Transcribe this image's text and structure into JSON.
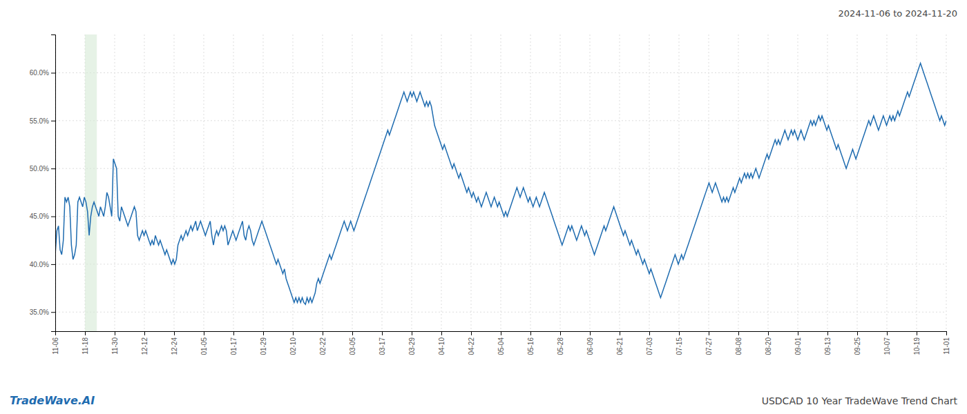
{
  "chart_data": {
    "type": "line",
    "title": "2024-11-06 to 2024-11-20",
    "annotations": [
      "TradeWave.AI",
      "USDCAD 10 Year TradeWave Trend Chart"
    ],
    "color": "#1f6cb0",
    "grid": true,
    "xlim": [
      0,
      552
    ],
    "xticks": [
      {
        "value": 0,
        "label": "11-06"
      },
      {
        "value": 18.4,
        "label": "11-18"
      },
      {
        "value": 36.8,
        "label": "11-30"
      },
      {
        "value": 55.2,
        "label": "12-12"
      },
      {
        "value": 73.6,
        "label": "12-24"
      },
      {
        "value": 92,
        "label": "01-05"
      },
      {
        "value": 110.4,
        "label": "01-17"
      },
      {
        "value": 128.8,
        "label": "01-29"
      },
      {
        "value": 147.2,
        "label": "02-10"
      },
      {
        "value": 165.6,
        "label": "02-22"
      },
      {
        "value": 184,
        "label": "03-05"
      },
      {
        "value": 202.4,
        "label": "03-17"
      },
      {
        "value": 220.8,
        "label": "03-29"
      },
      {
        "value": 239.2,
        "label": "04-10"
      },
      {
        "value": 257.6,
        "label": "04-22"
      },
      {
        "value": 276,
        "label": "05-04"
      },
      {
        "value": 294.4,
        "label": "05-16"
      },
      {
        "value": 312.8,
        "label": "05-28"
      },
      {
        "value": 331.2,
        "label": "06-09"
      },
      {
        "value": 349.6,
        "label": "06-21"
      },
      {
        "value": 368,
        "label": "07-03"
      },
      {
        "value": 386.4,
        "label": "07-15"
      },
      {
        "value": 404.8,
        "label": "07-27"
      },
      {
        "value": 423.2,
        "label": "08-08"
      },
      {
        "value": 441.6,
        "label": "08-20"
      },
      {
        "value": 460,
        "label": "09-01"
      },
      {
        "value": 478.4,
        "label": "09-13"
      },
      {
        "value": 496.8,
        "label": "09-25"
      },
      {
        "value": 515.2,
        "label": "10-07"
      },
      {
        "value": 533.6,
        "label": "10-19"
      },
      {
        "value": 552,
        "label": "11-01"
      }
    ],
    "ylim": [
      33.0,
      64.0
    ],
    "yticks": [
      {
        "value": 35.0,
        "label": "35.0%"
      },
      {
        "value": 40.0,
        "label": "40.0%"
      },
      {
        "value": 45.0,
        "label": "45.0%"
      },
      {
        "value": 50.0,
        "label": "50.0%"
      },
      {
        "value": 55.0,
        "label": "55.0%"
      },
      {
        "value": 60.0,
        "label": "60.0%"
      }
    ],
    "shade_range": [
      18.4,
      25.76
    ],
    "shade_color": "#d6ead6",
    "values": [
      41.0,
      43.5,
      44.0,
      41.5,
      41.0,
      42.5,
      47.0,
      46.5,
      47.0,
      46.0,
      42.0,
      40.5,
      41.0,
      42.0,
      46.5,
      47.0,
      46.5,
      46.0,
      47.0,
      46.5,
      45.5,
      43.0,
      45.0,
      46.0,
      46.5,
      46.0,
      45.5,
      45.0,
      46.0,
      45.5,
      45.0,
      46.0,
      47.5,
      47.0,
      46.0,
      45.0,
      51.0,
      50.5,
      50.0,
      45.0,
      44.5,
      46.0,
      45.5,
      45.0,
      44.5,
      44.0,
      44.5,
      45.0,
      45.5,
      46.0,
      45.5,
      43.0,
      42.5,
      43.0,
      43.5,
      43.0,
      43.5,
      43.0,
      42.5,
      42.0,
      42.5,
      42.0,
      43.0,
      42.5,
      42.0,
      42.5,
      42.0,
      41.5,
      41.0,
      41.5,
      41.0,
      40.5,
      40.0,
      40.5,
      40.0,
      40.5,
      42.0,
      42.5,
      43.0,
      42.5,
      43.0,
      43.5,
      43.0,
      43.5,
      44.0,
      43.5,
      44.0,
      44.5,
      43.5,
      44.0,
      44.5,
      44.0,
      43.5,
      43.0,
      43.5,
      44.0,
      44.5,
      43.0,
      42.0,
      43.0,
      43.5,
      43.0,
      43.5,
      44.0,
      43.5,
      44.0,
      43.5,
      42.0,
      42.5,
      43.0,
      43.5,
      43.0,
      42.5,
      43.0,
      43.5,
      44.0,
      44.5,
      43.0,
      42.5,
      43.5,
      44.0,
      43.5,
      42.5,
      42.0,
      42.5,
      43.0,
      43.5,
      44.0,
      44.5,
      44.0,
      43.5,
      43.0,
      42.5,
      42.0,
      41.5,
      41.0,
      40.5,
      40.0,
      40.5,
      40.0,
      39.5,
      39.0,
      39.5,
      38.5,
      38.0,
      37.5,
      37.0,
      36.5,
      36.0,
      36.5,
      36.0,
      36.5,
      36.0,
      36.5,
      36.0,
      35.8,
      36.5,
      36.0,
      36.5,
      36.0,
      36.5,
      37.0,
      38.0,
      38.5,
      38.0,
      38.5,
      39.0,
      39.5,
      40.0,
      40.5,
      41.0,
      40.5,
      41.0,
      41.5,
      42.0,
      42.5,
      43.0,
      43.5,
      44.0,
      44.5,
      44.0,
      43.5,
      44.0,
      44.5,
      44.0,
      43.5,
      44.0,
      44.5,
      45.0,
      45.5,
      46.0,
      46.5,
      47.0,
      47.5,
      48.0,
      48.5,
      49.0,
      49.5,
      50.0,
      50.5,
      51.0,
      51.5,
      52.0,
      52.5,
      53.0,
      53.5,
      54.0,
      53.5,
      54.0,
      54.5,
      55.0,
      55.5,
      56.0,
      56.5,
      57.0,
      57.5,
      58.0,
      57.5,
      57.0,
      57.5,
      58.0,
      57.5,
      58.0,
      57.5,
      57.0,
      57.5,
      58.0,
      57.5,
      57.0,
      56.5,
      57.0,
      56.5,
      57.0,
      56.5,
      55.5,
      54.5,
      54.0,
      53.5,
      53.0,
      52.5,
      52.0,
      52.5,
      52.0,
      51.5,
      51.0,
      50.5,
      50.0,
      50.5,
      50.0,
      49.5,
      49.0,
      49.5,
      49.0,
      48.5,
      48.0,
      47.5,
      48.0,
      47.5,
      47.0,
      47.5,
      47.0,
      46.5,
      47.0,
      46.5,
      46.0,
      46.5,
      47.0,
      47.5,
      47.0,
      46.5,
      46.0,
      46.5,
      47.0,
      46.5,
      46.0,
      46.5,
      46.0,
      45.5,
      45.0,
      45.5,
      45.0,
      45.5,
      46.0,
      46.5,
      47.0,
      47.5,
      48.0,
      47.5,
      47.0,
      47.5,
      48.0,
      47.5,
      47.0,
      46.5,
      47.0,
      46.5,
      46.0,
      46.5,
      47.0,
      46.5,
      46.0,
      46.5,
      47.0,
      47.5,
      47.0,
      46.5,
      46.0,
      45.5,
      45.0,
      44.5,
      44.0,
      43.5,
      43.0,
      42.5,
      42.0,
      42.5,
      43.0,
      43.5,
      44.0,
      43.5,
      44.0,
      43.5,
      43.0,
      42.5,
      43.0,
      43.5,
      44.0,
      43.5,
      43.0,
      43.5,
      43.0,
      42.5,
      42.0,
      41.5,
      41.0,
      41.5,
      42.0,
      42.5,
      43.0,
      43.5,
      44.0,
      43.5,
      44.0,
      44.5,
      45.0,
      45.5,
      46.0,
      45.5,
      45.0,
      44.5,
      44.0,
      43.5,
      43.0,
      43.5,
      43.0,
      42.5,
      42.0,
      42.5,
      42.0,
      41.5,
      41.0,
      41.5,
      41.0,
      40.5,
      40.0,
      40.5,
      40.0,
      39.5,
      39.0,
      39.5,
      39.0,
      38.5,
      38.0,
      37.5,
      37.0,
      36.5,
      37.0,
      37.5,
      38.0,
      38.5,
      39.0,
      39.5,
      40.0,
      40.5,
      41.0,
      40.5,
      40.0,
      40.5,
      41.0,
      40.5,
      41.0,
      41.5,
      42.0,
      42.5,
      43.0,
      43.5,
      44.0,
      44.5,
      45.0,
      45.5,
      46.0,
      46.5,
      47.0,
      47.5,
      48.0,
      48.5,
      48.0,
      47.5,
      48.0,
      48.5,
      48.0,
      47.5,
      47.0,
      46.5,
      47.0,
      46.5,
      47.0,
      46.5,
      47.0,
      47.5,
      48.0,
      47.5,
      48.0,
      48.5,
      49.0,
      48.5,
      49.0,
      49.5,
      49.0,
      49.5,
      49.0,
      49.5,
      49.0,
      49.5,
      50.0,
      49.5,
      49.0,
      49.5,
      50.0,
      50.5,
      51.0,
      51.5,
      51.0,
      51.5,
      52.0,
      52.5,
      53.0,
      52.5,
      53.0,
      52.5,
      53.0,
      53.5,
      54.0,
      53.5,
      53.0,
      53.5,
      54.0,
      53.5,
      54.0,
      53.5,
      53.0,
      53.5,
      54.0,
      53.5,
      53.0,
      53.5,
      54.0,
      54.5,
      55.0,
      54.5,
      55.0,
      54.5,
      55.0,
      55.5,
      55.0,
      55.5,
      55.0,
      54.5,
      54.0,
      54.5,
      54.0,
      53.5,
      53.0,
      52.5,
      52.0,
      52.5,
      52.0,
      51.5,
      51.0,
      50.5,
      50.0,
      50.5,
      51.0,
      51.5,
      52.0,
      51.5,
      51.0,
      51.5,
      52.0,
      52.5,
      53.0,
      53.5,
      54.0,
      54.5,
      55.0,
      54.5,
      55.0,
      55.5,
      55.0,
      54.5,
      54.0,
      54.5,
      55.0,
      55.5,
      55.0,
      54.5,
      55.0,
      55.5,
      55.0,
      55.5,
      55.0,
      55.5,
      56.0,
      55.5,
      56.0,
      56.5,
      57.0,
      57.5,
      58.0,
      57.5,
      58.0,
      58.5,
      59.0,
      59.5,
      60.0,
      60.5,
      61.0,
      60.5,
      60.0,
      59.5,
      59.0,
      58.5,
      58.0,
      57.5,
      57.0,
      56.5,
      56.0,
      55.5,
      55.0,
      55.5,
      55.0,
      54.5,
      55.0
    ]
  }
}
